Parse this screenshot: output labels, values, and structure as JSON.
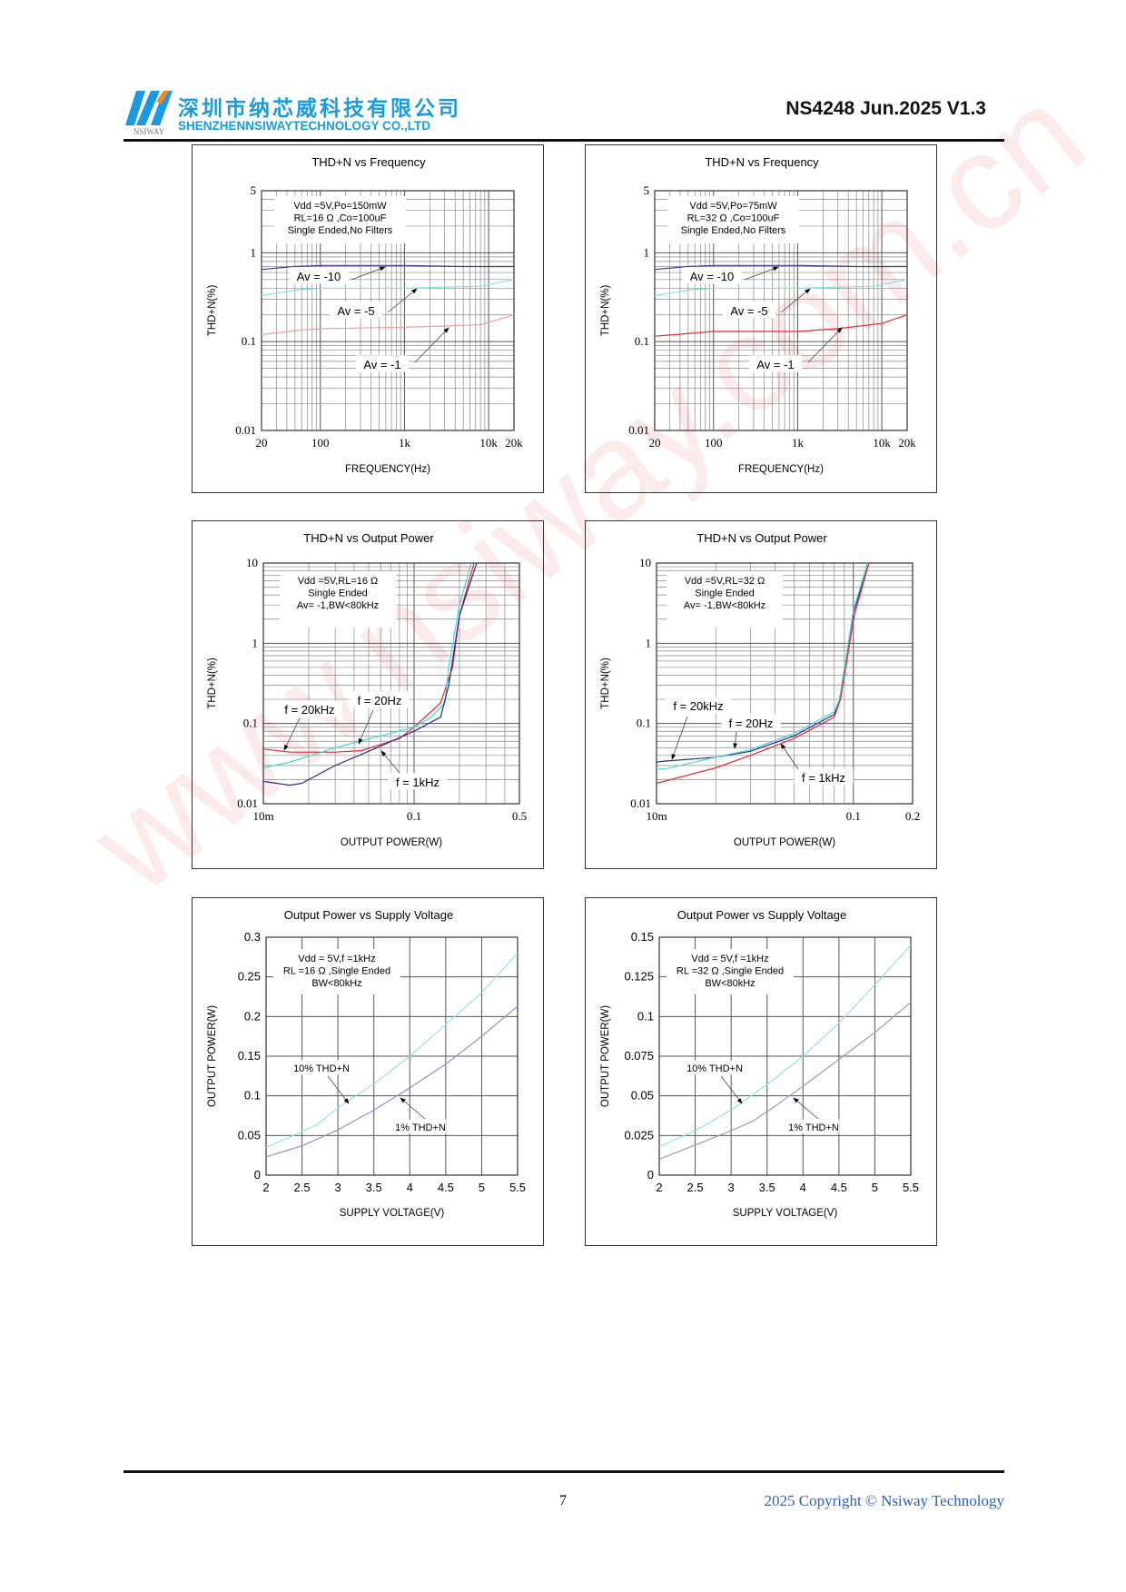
{
  "header": {
    "logo_text": "NSIWAY",
    "company_cn": "深圳市纳芯威科技有限公司",
    "company_en": "SHENZHENNSIWAYTECHNOLOGY CO.,LTD",
    "doc_id": "NS4248 Jun.2025 V1.3"
  },
  "watermark": "www.nsiway.com.cn",
  "footer": {
    "page_number": "7",
    "copyright": "2025 Copyright © Nsiway Technology"
  },
  "colors": {
    "brand": "#1a9ae0",
    "navy": "#2b2b8a",
    "cyan": "#3fd8e0",
    "red": "#e52a2a",
    "copyright": "#2f5ec4"
  },
  "chart_data": [
    {
      "type": "line",
      "title": "THD+N vs Frequency",
      "xlabel": "FREQUENCY(Hz)",
      "ylabel": "THD+N(%)",
      "xscale": "log",
      "yscale": "log",
      "xlim": [
        20,
        20000
      ],
      "ylim": [
        0.01,
        5
      ],
      "grid": true,
      "xticks": [
        {
          "v": 20,
          "label": "20"
        },
        {
          "v": 100,
          "label": "100"
        },
        {
          "v": 1000,
          "label": "1k"
        },
        {
          "v": 10000,
          "label": "10k"
        },
        {
          "v": 20000,
          "label": "20k"
        }
      ],
      "yticks": [
        {
          "v": 0.01,
          "label": "0.01"
        },
        {
          "v": 0.1,
          "label": "0.1"
        },
        {
          "v": 1,
          "label": "1"
        },
        {
          "v": 5,
          "label": "5"
        }
      ],
      "infobox": [
        "Vdd =5V,Po=150mW",
        "RL=16 Ω ,Co=100uF",
        "Single Ended,No Filters"
      ],
      "series": [
        {
          "name": "Av = -10",
          "color": "#3a3a9a",
          "points": [
            [
              20,
              0.65
            ],
            [
              50,
              0.7
            ],
            [
              100,
              0.72
            ],
            [
              1000,
              0.72
            ],
            [
              5000,
              0.7
            ],
            [
              20000,
              0.7
            ]
          ]
        },
        {
          "name": "Av = -5",
          "color": "#7fe3e8",
          "points": [
            [
              20,
              0.33
            ],
            [
              50,
              0.38
            ],
            [
              100,
              0.4
            ],
            [
              1000,
              0.4
            ],
            [
              8000,
              0.42
            ],
            [
              20000,
              0.5
            ]
          ]
        },
        {
          "name": "Av = -1",
          "color": "#f0a0a0",
          "points": [
            [
              20,
              0.12
            ],
            [
              60,
              0.135
            ],
            [
              100,
              0.14
            ],
            [
              1000,
              0.145
            ],
            [
              3000,
              0.15
            ],
            [
              8000,
              0.155
            ],
            [
              20000,
              0.2
            ]
          ]
        }
      ]
    },
    {
      "type": "line",
      "title": "THD+N vs Frequency",
      "xlabel": "FREQUENCY(Hz)",
      "ylabel": "THD+N(%)",
      "xscale": "log",
      "yscale": "log",
      "xlim": [
        20,
        20000
      ],
      "ylim": [
        0.01,
        5
      ],
      "grid": true,
      "xticks": [
        {
          "v": 20,
          "label": "20"
        },
        {
          "v": 100,
          "label": "100"
        },
        {
          "v": 1000,
          "label": "1k"
        },
        {
          "v": 10000,
          "label": "10k"
        },
        {
          "v": 20000,
          "label": "20k"
        }
      ],
      "yticks": [
        {
          "v": 0.01,
          "label": "0.01"
        },
        {
          "v": 0.1,
          "label": "0.1"
        },
        {
          "v": 1,
          "label": "1"
        },
        {
          "v": 5,
          "label": "5"
        }
      ],
      "infobox": [
        "Vdd =5V,Po=75mW",
        "RL=32 Ω ,Co=100uF",
        "Single Ended,No Filters"
      ],
      "series": [
        {
          "name": "Av = -10",
          "color": "#3a3a9a",
          "points": [
            [
              20,
              0.65
            ],
            [
              50,
              0.7
            ],
            [
              100,
              0.72
            ],
            [
              1000,
              0.72
            ],
            [
              5000,
              0.7
            ],
            [
              20000,
              0.7
            ]
          ]
        },
        {
          "name": "Av = -5",
          "color": "#7fe3e8",
          "points": [
            [
              20,
              0.33
            ],
            [
              50,
              0.38
            ],
            [
              100,
              0.4
            ],
            [
              1000,
              0.4
            ],
            [
              8000,
              0.42
            ],
            [
              20000,
              0.5
            ]
          ]
        },
        {
          "name": "Av = -1",
          "color": "#e52a2a",
          "points": [
            [
              20,
              0.115
            ],
            [
              60,
              0.125
            ],
            [
              100,
              0.13
            ],
            [
              1000,
              0.13
            ],
            [
              3000,
              0.14
            ],
            [
              10000,
              0.16
            ],
            [
              20000,
              0.2
            ]
          ]
        }
      ]
    },
    {
      "type": "line",
      "title": "THD+N vs Output Power",
      "xlabel": "OUTPUT POWER(W)",
      "ylabel": "THD+N(%)",
      "xscale": "log",
      "yscale": "log",
      "xlim": [
        0.01,
        0.5
      ],
      "ylim": [
        0.01,
        10
      ],
      "grid": true,
      "xticks": [
        {
          "v": 0.01,
          "label": "10m"
        },
        {
          "v": 0.1,
          "label": "0.1"
        },
        {
          "v": 0.5,
          "label": "0.5"
        }
      ],
      "yticks": [
        {
          "v": 0.01,
          "label": "0.01"
        },
        {
          "v": 0.1,
          "label": "0.1"
        },
        {
          "v": 1,
          "label": "1"
        },
        {
          "v": 10,
          "label": "10"
        }
      ],
      "infobox": [
        "Vdd =5V,RL=16 Ω",
        "Single Ended",
        "Av= -1,BW<80kHz"
      ],
      "series": [
        {
          "name": "f = 20kHz",
          "color": "#e52a2a",
          "points": [
            [
              0.01,
              0.048
            ],
            [
              0.015,
              0.044
            ],
            [
              0.03,
              0.044
            ],
            [
              0.045,
              0.046
            ],
            [
              0.08,
              0.065
            ],
            [
              0.1,
              0.09
            ],
            [
              0.15,
              0.18
            ],
            [
              0.18,
              0.5
            ],
            [
              0.2,
              2.2
            ],
            [
              0.25,
              10
            ]
          ]
        },
        {
          "name": "f = 20Hz",
          "color": "#3fd8e0",
          "points": [
            [
              0.01,
              0.028
            ],
            [
              0.015,
              0.033
            ],
            [
              0.03,
              0.05
            ],
            [
              0.06,
              0.07
            ],
            [
              0.1,
              0.09
            ],
            [
              0.13,
              0.12
            ],
            [
              0.16,
              0.18
            ],
            [
              0.17,
              0.5
            ],
            [
              0.2,
              3
            ],
            [
              0.24,
              10
            ]
          ]
        },
        {
          "name": "f = 1kHz",
          "color": "#2b2b8a",
          "points": [
            [
              0.01,
              0.019
            ],
            [
              0.015,
              0.017
            ],
            [
              0.018,
              0.018
            ],
            [
              0.03,
              0.03
            ],
            [
              0.05,
              0.045
            ],
            [
              0.1,
              0.08
            ],
            [
              0.15,
              0.12
            ],
            [
              0.17,
              0.3
            ],
            [
              0.2,
              2.2
            ],
            [
              0.26,
              10
            ]
          ]
        }
      ]
    },
    {
      "type": "line",
      "title": "THD+N vs Output Power",
      "xlabel": "OUTPUT POWER(W)",
      "ylabel": "THD+N(%)",
      "xscale": "log",
      "yscale": "log",
      "xlim": [
        0.01,
        0.2
      ],
      "ylim": [
        0.01,
        10
      ],
      "grid": true,
      "xticks": [
        {
          "v": 0.01,
          "label": "10m"
        },
        {
          "v": 0.1,
          "label": "0.1"
        },
        {
          "v": 0.2,
          "label": "0.2"
        }
      ],
      "yticks": [
        {
          "v": 0.01,
          "label": "0.01"
        },
        {
          "v": 0.1,
          "label": "0.1"
        },
        {
          "v": 1,
          "label": "1"
        },
        {
          "v": 10,
          "label": "10"
        }
      ],
      "infobox": [
        "Vdd =5V,RL=32 Ω",
        "Single Ended",
        "Av= -1,BW<80kHz"
      ],
      "series": [
        {
          "name": "f = 20kHz",
          "color": "#2b2b8a",
          "points": [
            [
              0.01,
              0.033
            ],
            [
              0.011,
              0.034
            ],
            [
              0.02,
              0.038
            ],
            [
              0.03,
              0.045
            ],
            [
              0.05,
              0.07
            ],
            [
              0.08,
              0.13
            ],
            [
              0.085,
              0.2
            ],
            [
              0.1,
              2.4
            ],
            [
              0.12,
              10
            ]
          ]
        },
        {
          "name": "f = 20Hz",
          "color": "#3fd8e0",
          "points": [
            [
              0.01,
              0.027
            ],
            [
              0.011,
              0.027
            ],
            [
              0.02,
              0.038
            ],
            [
              0.03,
              0.047
            ],
            [
              0.05,
              0.075
            ],
            [
              0.08,
              0.14
            ],
            [
              0.085,
              0.2
            ],
            [
              0.1,
              2.6
            ],
            [
              0.118,
              10
            ]
          ]
        },
        {
          "name": "f = 1kHz",
          "color": "#e52a2a",
          "points": [
            [
              0.01,
              0.018
            ],
            [
              0.02,
              0.028
            ],
            [
              0.03,
              0.04
            ],
            [
              0.05,
              0.065
            ],
            [
              0.08,
              0.12
            ],
            [
              0.086,
              0.2
            ],
            [
              0.101,
              2.2
            ],
            [
              0.12,
              10
            ]
          ]
        }
      ]
    },
    {
      "type": "line",
      "title": "Output Power vs Supply Voltage",
      "xlabel": "SUPPLY VOLTAGE(V)",
      "ylabel": "OUTPUT POWER(W)",
      "xscale": "linear",
      "yscale": "linear",
      "xlim": [
        2,
        5.5
      ],
      "ylim": [
        0,
        0.3
      ],
      "grid": true,
      "xticks": [
        {
          "v": 2,
          "label": "2"
        },
        {
          "v": 2.5,
          "label": "2.5"
        },
        {
          "v": 3,
          "label": "3"
        },
        {
          "v": 3.5,
          "label": "3.5"
        },
        {
          "v": 4,
          "label": "4"
        },
        {
          "v": 4.5,
          "label": "4.5"
        },
        {
          "v": 5,
          "label": "5"
        },
        {
          "v": 5.5,
          "label": "5.5"
        }
      ],
      "yticks": [
        {
          "v": 0,
          "label": "0"
        },
        {
          "v": 0.05,
          "label": "0.05"
        },
        {
          "v": 0.1,
          "label": "0.1"
        },
        {
          "v": 0.15,
          "label": "0.15"
        },
        {
          "v": 0.2,
          "label": "0.2"
        },
        {
          "v": 0.25,
          "label": "0.25"
        },
        {
          "v": 0.3,
          "label": "0.3"
        }
      ],
      "infobox": [
        "Vdd = 5V,f =1kHz",
        "RL =16 Ω ,Single Ended",
        "BW<80kHz"
      ],
      "series": [
        {
          "name": "10% THD+N",
          "color": "#8ee8d8",
          "points": [
            [
              2,
              0.035
            ],
            [
              2.5,
              0.055
            ],
            [
              2.7,
              0.063
            ],
            [
              3,
              0.085
            ],
            [
              3.5,
              0.115
            ],
            [
              4,
              0.15
            ],
            [
              4.5,
              0.19
            ],
            [
              5,
              0.23
            ],
            [
              5.5,
              0.28
            ]
          ]
        },
        {
          "name": "1% THD+N",
          "color": "#8f8fe0",
          "points": [
            [
              2,
              0.023
            ],
            [
              2.5,
              0.037
            ],
            [
              3,
              0.057
            ],
            [
              3.5,
              0.082
            ],
            [
              4,
              0.11
            ],
            [
              4.5,
              0.14
            ],
            [
              5,
              0.175
            ],
            [
              5.5,
              0.213
            ]
          ]
        }
      ]
    },
    {
      "type": "line",
      "title": "Output Power vs Supply Voltage",
      "xlabel": "SUPPLY VOLTAGE(V)",
      "ylabel": "OUTPUT POWER(W)",
      "xscale": "linear",
      "yscale": "linear",
      "xlim": [
        2,
        5.5
      ],
      "ylim": [
        0,
        0.15
      ],
      "grid": true,
      "xticks": [
        {
          "v": 2,
          "label": "2"
        },
        {
          "v": 2.5,
          "label": "2.5"
        },
        {
          "v": 3,
          "label": "3"
        },
        {
          "v": 3.5,
          "label": "3.5"
        },
        {
          "v": 4,
          "label": "4"
        },
        {
          "v": 4.5,
          "label": "4.5"
        },
        {
          "v": 5,
          "label": "5"
        },
        {
          "v": 5.5,
          "label": "5.5"
        }
      ],
      "yticks": [
        {
          "v": 0,
          "label": "0"
        },
        {
          "v": 0.025,
          "label": "0.025"
        },
        {
          "v": 0.05,
          "label": "0.05"
        },
        {
          "v": 0.075,
          "label": "0.075"
        },
        {
          "v": 0.1,
          "label": "0.1"
        },
        {
          "v": 0.125,
          "label": "0.125"
        },
        {
          "v": 0.15,
          "label": "0.15"
        }
      ],
      "infobox": [
        "Vdd = 5V,f =1kHz",
        "RL =32 Ω ,Single Ended",
        "BW<80kHz"
      ],
      "series": [
        {
          "name": "10% THD+N",
          "color": "#8ee8d8",
          "points": [
            [
              2,
              0.018
            ],
            [
              2.5,
              0.028
            ],
            [
              3,
              0.041
            ],
            [
              3.5,
              0.057
            ],
            [
              4,
              0.075
            ],
            [
              4.5,
              0.096
            ],
            [
              5,
              0.12
            ],
            [
              5.5,
              0.145
            ]
          ]
        },
        {
          "name": "1% THD+N",
          "color": "#9a9ac0",
          "points": [
            [
              2,
              0.01
            ],
            [
              2.5,
              0.019
            ],
            [
              3,
              0.028
            ],
            [
              3.3,
              0.034
            ],
            [
              3.5,
              0.04
            ],
            [
              4,
              0.056
            ],
            [
              4.5,
              0.073
            ],
            [
              5,
              0.09
            ],
            [
              5.5,
              0.109
            ]
          ]
        }
      ]
    }
  ]
}
